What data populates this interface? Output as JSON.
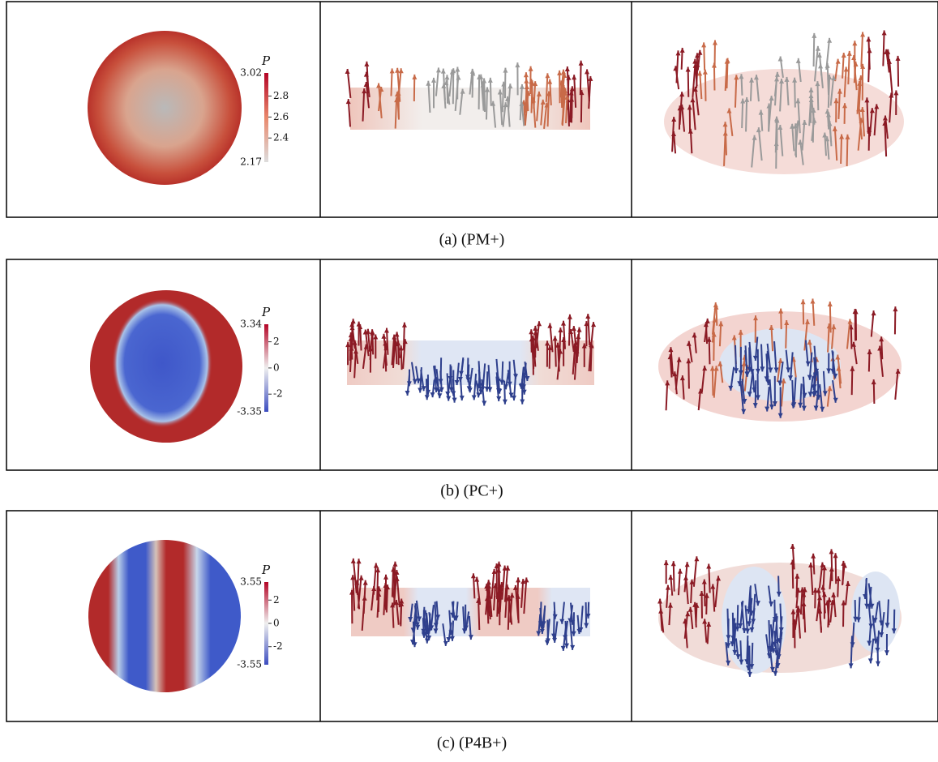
{
  "rows": [
    {
      "colorbar": {
        "label": "P",
        "max": 3.02,
        "min": 2.17,
        "ticks": [
          2.8,
          2.6,
          2.4
        ]
      },
      "caption": "(a) (PM+)"
    },
    {
      "colorbar": {
        "label": "P",
        "max": 3.34,
        "min": -3.35,
        "ticks": [
          2,
          0,
          -2
        ]
      },
      "caption": "(b) (PC+)"
    },
    {
      "colorbar": {
        "label": "P",
        "max": 3.55,
        "min": -3.55,
        "ticks": [
          2,
          0,
          -2
        ]
      },
      "caption": "(c) (P4B+)"
    }
  ]
}
